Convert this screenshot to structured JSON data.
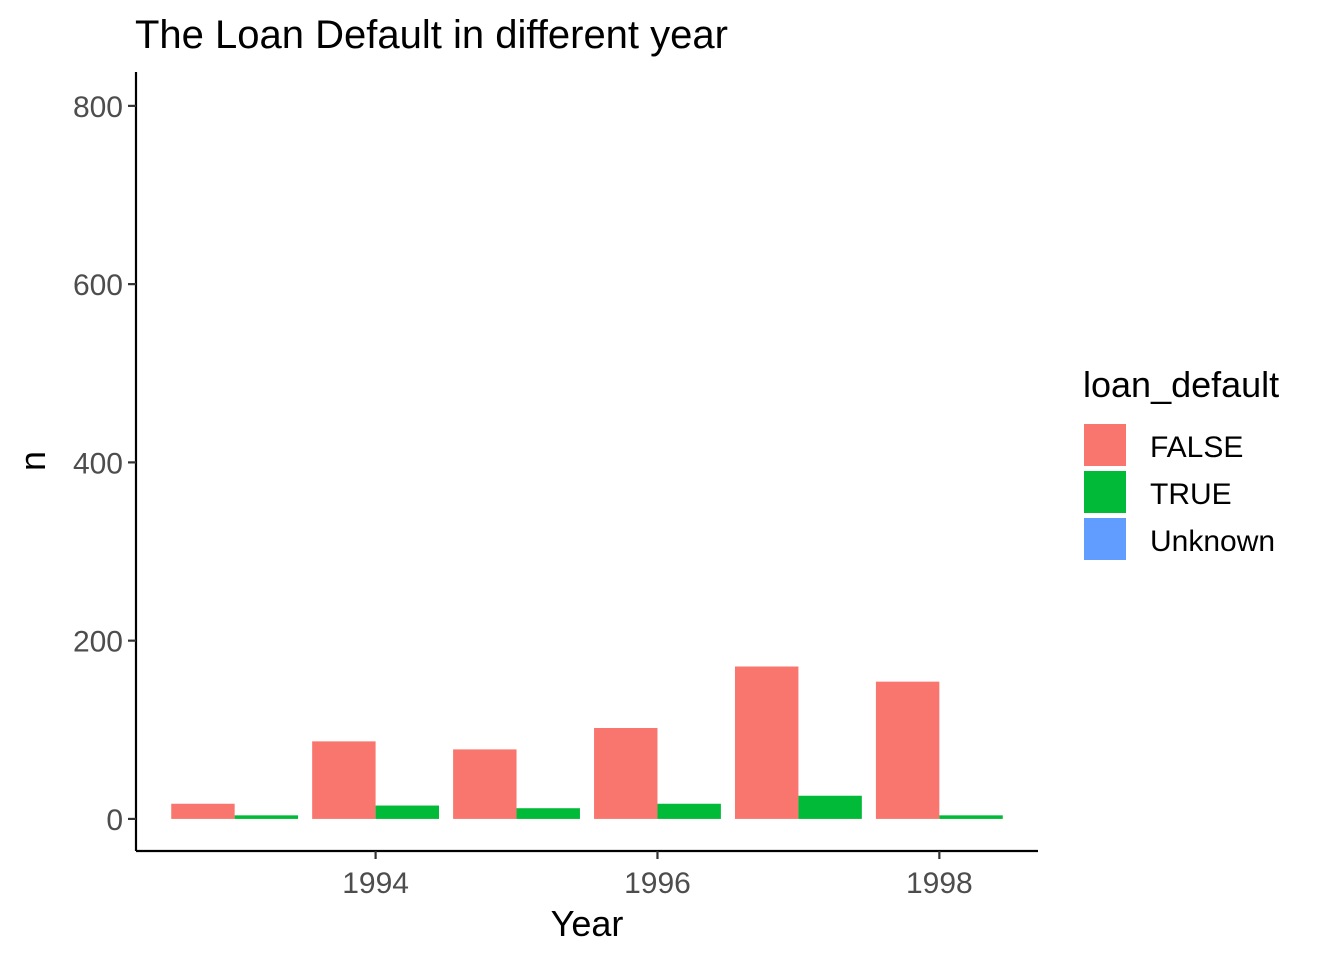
{
  "chart_data": {
    "type": "bar",
    "title": "The Loan Default in different year",
    "xlabel": "Year",
    "ylabel": "n",
    "x": [
      1993,
      1994,
      1995,
      1996,
      1997,
      1998
    ],
    "x_ticks": [
      1994,
      1996,
      1998
    ],
    "xlim": [
      1992.3,
      1998.7
    ],
    "y_ticks": [
      0,
      200,
      400,
      600,
      800
    ],
    "ylim": [
      -36,
      838
    ],
    "grid": false,
    "legend": {
      "title": "loan_default",
      "position": "right",
      "entries": [
        "FALSE",
        "TRUE",
        "Unknown"
      ]
    },
    "series": [
      {
        "name": "FALSE",
        "color": "#F8766D",
        "values": [
          17,
          87,
          78,
          102,
          171,
          154
        ]
      },
      {
        "name": "TRUE",
        "color": "#00BA38",
        "values": [
          4,
          15,
          12,
          17,
          26,
          4
        ]
      },
      {
        "name": "Unknown",
        "color": "#619CFF",
        "values": [
          null,
          null,
          null,
          null,
          null,
          null
        ]
      }
    ]
  }
}
